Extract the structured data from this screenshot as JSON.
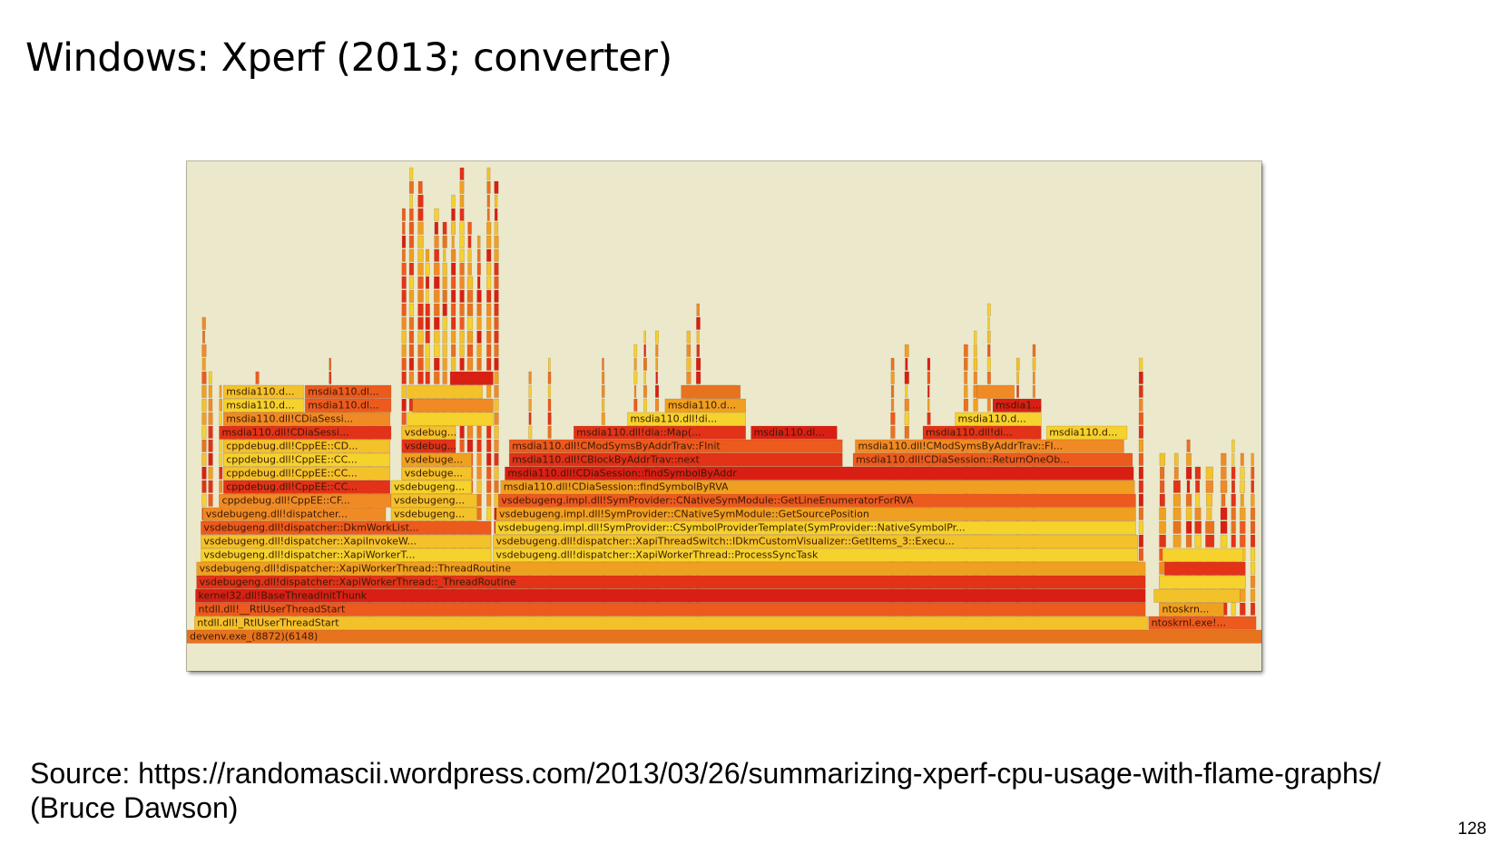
{
  "slide": {
    "title": "Windows: Xperf (2013; converter)",
    "source_line1": "Source: https://randomascii.wordpress.com/2013/03/26/summarizing-xperf-cpu-usage-with-flame-graphs/",
    "source_line2": "(Bruce Dawson)",
    "page_number": "128"
  },
  "flame_graph": {
    "background": "#ebe8cc",
    "palette": [
      "#e8731f",
      "#f0a020",
      "#e23218",
      "#f5d22c",
      "#ed5a1e",
      "#f3c12a",
      "#d91f14",
      "#f08a24"
    ],
    "frames": [
      {
        "label": "devenv.exe_(8872)(6148)",
        "depth": 0,
        "start": 0.0,
        "width": 1.0,
        "color": "#e8731f"
      },
      {
        "label": "ntdll.dll!_RtlUserThreadStart",
        "depth": 1,
        "start": 0.007,
        "width": 0.887,
        "color": "#f3c12a"
      },
      {
        "label": "ntoskrnl.exe!...",
        "depth": 1,
        "start": 0.895,
        "width": 0.1,
        "color": "#ed5a1e"
      },
      {
        "label": "ntdll.dll!__RtlUserThreadStart",
        "depth": 2,
        "start": 0.008,
        "width": 0.884,
        "color": "#ed5a1e"
      },
      {
        "label": "ntoskrn...",
        "depth": 2,
        "start": 0.905,
        "width": 0.06,
        "color": "#f0a020"
      },
      {
        "label": "kernel32.dll!BaseThreadInitThunk",
        "depth": 3,
        "start": 0.008,
        "width": 0.884,
        "color": "#d91f14"
      },
      {
        "label": "vsdebugeng.dll!dispatcher::XapiWorkerThread::_ThreadRoutine",
        "depth": 4,
        "start": 0.009,
        "width": 0.883,
        "color": "#e23218"
      },
      {
        "label": "vsdebugeng.dll!dispatcher::XapiWorkerThread::ThreadRoutine",
        "depth": 5,
        "start": 0.009,
        "width": 0.883,
        "color": "#f0a020"
      },
      {
        "label": "vsdebugeng.dll!dispatcher::XapiWorkerT...",
        "depth": 6,
        "start": 0.013,
        "width": 0.27,
        "color": "#f5d22c"
      },
      {
        "label": "vsdebugeng.dll!dispatcher::XapiThreadSwitch::IDkmCustomVisualizer::GetItems_3::Execu...",
        "depth": 7,
        "start": 0.285,
        "width": 0.6,
        "color": "#f3c12a"
      },
      {
        "label": "vsdebugeng.dll!dispatcher::XapiWorkerThread::ProcessSyncTask",
        "depth": 6,
        "start": 0.285,
        "width": 0.6,
        "color": "#f5d22c"
      },
      {
        "label": "vsdebugeng.dll!dispatcher::XapiInvokeW...",
        "depth": 7,
        "start": 0.013,
        "width": 0.27,
        "color": "#f3c12a"
      },
      {
        "label": "vsdebugeng.dll!dispatcher::DkmWorkList...",
        "depth": 8,
        "start": 0.013,
        "width": 0.27,
        "color": "#ed5a1e"
      },
      {
        "label": "vsdebugeng.impl.dll!SymProvider::CSymbolProviderTemplate(SymProvider::NativeSymbolPr...",
        "depth": 8,
        "start": 0.287,
        "width": 0.596,
        "color": "#f5d22c"
      },
      {
        "label": "vsdebugeng.dll!dispatcher...",
        "depth": 9,
        "start": 0.015,
        "width": 0.17,
        "color": "#f08a24"
      },
      {
        "label": "vsdebugeng...",
        "depth": 9,
        "start": 0.19,
        "width": 0.08,
        "color": "#f3c12a"
      },
      {
        "label": "vsdebugeng.impl.dll!SymProvider::CNativeSymModule::GetSourcePosition",
        "depth": 9,
        "start": 0.288,
        "width": 0.595,
        "color": "#f0a020"
      },
      {
        "label": "cppdebug.dll!CppEE::CF...",
        "depth": 10,
        "start": 0.03,
        "width": 0.16,
        "color": "#f08a24"
      },
      {
        "label": "vsdebugeng...",
        "depth": 10,
        "start": 0.19,
        "width": 0.08,
        "color": "#f3c12a"
      },
      {
        "label": "vsdebugeng.impl.dll!SymProvider::CNativeSymModule::GetLineEnumeratorForRVA",
        "depth": 10,
        "start": 0.29,
        "width": 0.593,
        "color": "#ed5a1e"
      },
      {
        "label": "cppdebug.dll!CppEE::CC...",
        "depth": 11,
        "start": 0.034,
        "width": 0.155,
        "color": "#e23218"
      },
      {
        "label": "vsdebugeng...",
        "depth": 11,
        "start": 0.19,
        "width": 0.075,
        "color": "#f5d22c"
      },
      {
        "label": "msdia110.dll!CDiaSession::findSymbolByRVA",
        "depth": 11,
        "start": 0.292,
        "width": 0.59,
        "color": "#f0a020"
      },
      {
        "label": "cppdebug.dll!CppEE::CC...",
        "depth": 12,
        "start": 0.034,
        "width": 0.155,
        "color": "#f3c12a"
      },
      {
        "label": "vsdebuge...",
        "depth": 12,
        "start": 0.2,
        "width": 0.065,
        "color": "#f3c12a"
      },
      {
        "label": "msdia110.dll!CDiaSession::findSymbolByAddr",
        "depth": 12,
        "start": 0.296,
        "width": 0.585,
        "color": "#d91f14"
      },
      {
        "label": "cppdebug.dll!CppEE::CC...",
        "depth": 13,
        "start": 0.034,
        "width": 0.155,
        "color": "#f5d22c"
      },
      {
        "label": "vsdebuge...",
        "depth": 13,
        "start": 0.2,
        "width": 0.065,
        "color": "#f0a020"
      },
      {
        "label": "msdia110.dll!CBlockByAddrTrav::next",
        "depth": 13,
        "start": 0.3,
        "width": 0.31,
        "color": "#e23218"
      },
      {
        "label": "msdia110.dll!CDiaSession::ReturnOneOb...",
        "depth": 13,
        "start": 0.62,
        "width": 0.26,
        "color": "#ed5a1e"
      },
      {
        "label": "cppdebug.dll!CppEE::CD...",
        "depth": 14,
        "start": 0.034,
        "width": 0.155,
        "color": "#f3c12a"
      },
      {
        "label": "vsdebug...",
        "depth": 14,
        "start": 0.2,
        "width": 0.05,
        "color": "#e23218"
      },
      {
        "label": "msdia110.dll!CModSymsByAddrTrav::FInit",
        "depth": 14,
        "start": 0.3,
        "width": 0.31,
        "color": "#ed5a1e"
      },
      {
        "label": "msdia110.dll!CModSymsByAddrTrav::FI...",
        "depth": 14,
        "start": 0.622,
        "width": 0.25,
        "color": "#f08a24"
      },
      {
        "label": "msdia110.dll!CDiaSessi...",
        "depth": 15,
        "start": 0.03,
        "width": 0.16,
        "color": "#e23218"
      },
      {
        "label": "vsdebug...",
        "depth": 15,
        "start": 0.2,
        "width": 0.05,
        "color": "#f3c12a"
      },
      {
        "label": "msdia110.dll!dia::Map(...",
        "depth": 15,
        "start": 0.36,
        "width": 0.16,
        "color": "#e23218"
      },
      {
        "label": "msdia110.dl...",
        "depth": 15,
        "start": 0.525,
        "width": 0.08,
        "color": "#d91f14"
      },
      {
        "label": "msdia110.dll!di...",
        "depth": 15,
        "start": 0.685,
        "width": 0.11,
        "color": "#e23218"
      },
      {
        "label": "msdia110.d...",
        "depth": 15,
        "start": 0.8,
        "width": 0.075,
        "color": "#f5d22c"
      },
      {
        "label": "msdia110.dll!CDiaSessi...",
        "depth": 16,
        "start": 0.034,
        "width": 0.155,
        "color": "#f08a24"
      },
      {
        "label": "msdia110.dll!di...",
        "depth": 16,
        "start": 0.41,
        "width": 0.11,
        "color": "#f5d22c"
      },
      {
        "label": "msdia110.d...",
        "depth": 16,
        "start": 0.715,
        "width": 0.08,
        "color": "#f5d22c"
      },
      {
        "label": "msdia110.d...",
        "depth": 17,
        "start": 0.034,
        "width": 0.075,
        "color": "#f5d22c"
      },
      {
        "label": "msdia110.dl...",
        "depth": 17,
        "start": 0.11,
        "width": 0.08,
        "color": "#ed5a1e"
      },
      {
        "label": "msdia110.d...",
        "depth": 17,
        "start": 0.445,
        "width": 0.075,
        "color": "#f0a020"
      },
      {
        "label": "msdia1...",
        "depth": 17,
        "start": 0.75,
        "width": 0.045,
        "color": "#d91f14"
      },
      {
        "label": "msdia110.d...",
        "depth": 18,
        "start": 0.034,
        "width": 0.075,
        "color": "#f3c12a"
      },
      {
        "label": "msdia110.dl...",
        "depth": 18,
        "start": 0.11,
        "width": 0.08,
        "color": "#ed5a1e"
      },
      {
        "label": "",
        "depth": 18,
        "start": 0.46,
        "width": 0.055,
        "color": "#e8731f"
      }
    ]
  }
}
